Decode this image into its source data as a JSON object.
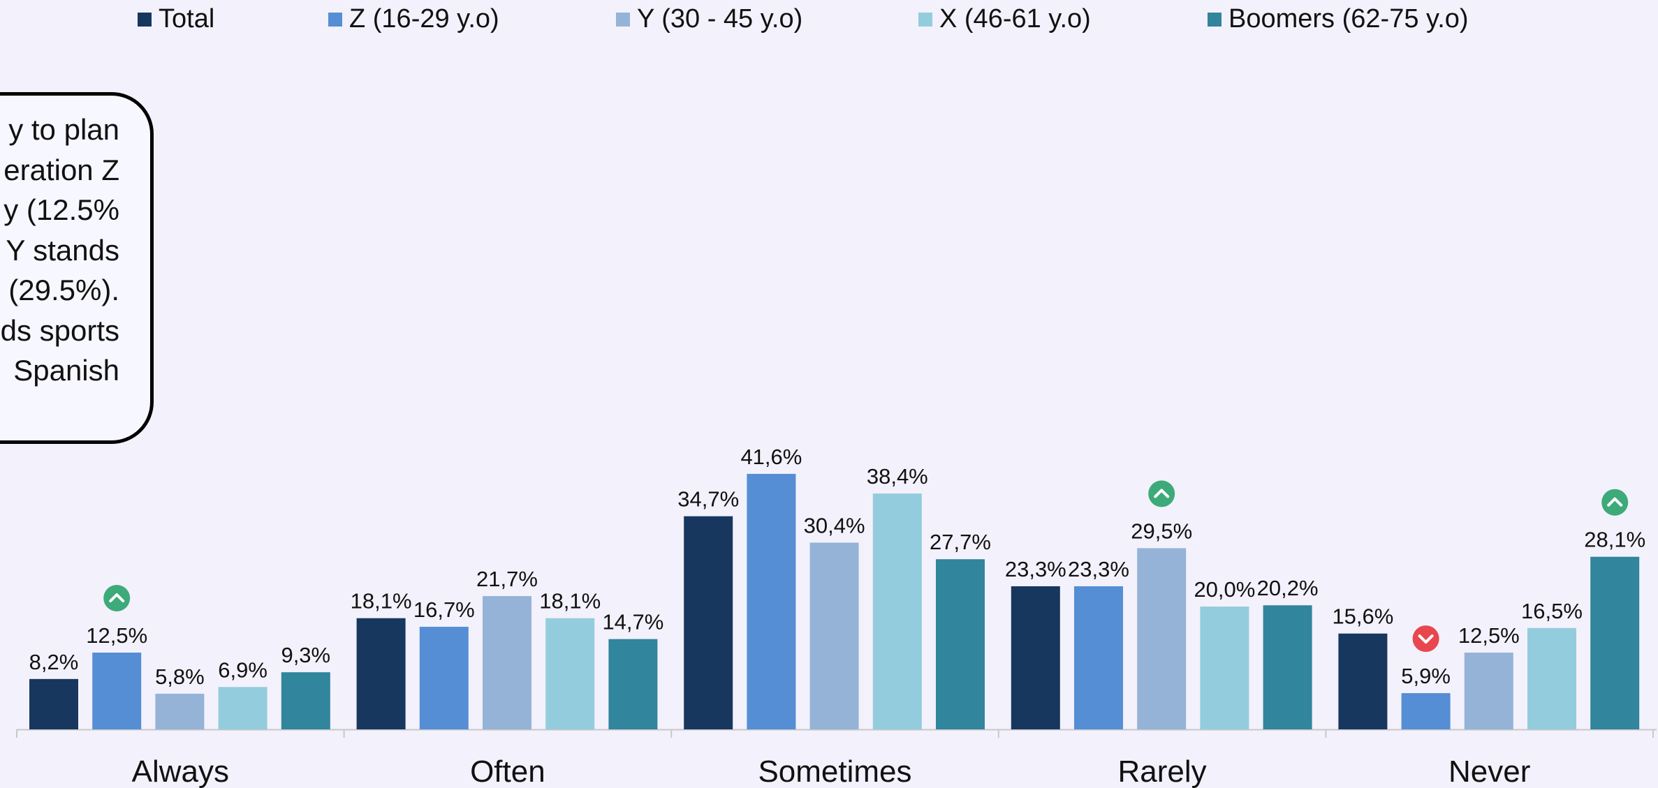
{
  "legend": [
    {
      "label": "Total",
      "color": "#17375e"
    },
    {
      "label": "Z (16-29 y.o)",
      "color": "#558ed5"
    },
    {
      "label": "Y (30 - 45 y.o)",
      "color": "#95b3d7"
    },
    {
      "label": "X (46-61 y.o)",
      "color": "#93cddd"
    },
    {
      "label": "Boomers (62-75 y.o)",
      "color": "#31859c"
    }
  ],
  "note": {
    "lines": [
      "y to plan",
      "eration Z",
      "y (12.5%",
      "Y stands",
      "(29.5%).",
      "ds sports",
      "Spanish"
    ]
  },
  "chart_data": {
    "type": "bar",
    "categories": [
      "Always",
      "Often",
      "Sometimes",
      "Rarely",
      "Never"
    ],
    "series": [
      {
        "name": "Total",
        "values": [
          8.2,
          18.1,
          34.7,
          23.3,
          15.6
        ],
        "labels": [
          "8,2%",
          "18,1%",
          "34,7%",
          "23,3%",
          "15,6%"
        ]
      },
      {
        "name": "Z (16-29 y.o)",
        "values": [
          12.5,
          16.7,
          41.6,
          23.3,
          5.9
        ],
        "labels": [
          "12,5%",
          "16,7%",
          "41,6%",
          "23,3%",
          "5,9%"
        ]
      },
      {
        "name": "Y (30 - 45 y.o)",
        "values": [
          5.8,
          21.7,
          30.4,
          29.5,
          12.5
        ],
        "labels": [
          "5,8%",
          "21,7%",
          "30,4%",
          "29,5%",
          "12,5%"
        ]
      },
      {
        "name": "X (46-61 y.o)",
        "values": [
          6.9,
          18.1,
          38.4,
          20.0,
          16.5
        ],
        "labels": [
          "6,9%",
          "18,1%",
          "38,4%",
          "20,0%",
          "16,5%"
        ]
      },
      {
        "name": "Boomers (62-75 y.o)",
        "values": [
          9.3,
          14.7,
          27.7,
          20.2,
          28.1
        ],
        "labels": [
          "9,3%",
          "14,7%",
          "27,7%",
          "20,2%",
          "28,1%"
        ]
      }
    ],
    "markers": [
      {
        "category": "Always",
        "series": "Z (16-29 y.o)",
        "direction": "up",
        "color": "#3daa7a"
      },
      {
        "category": "Rarely",
        "series": "Y (30 - 45 y.o)",
        "direction": "up",
        "color": "#3daa7a"
      },
      {
        "category": "Never",
        "series": "Z (16-29 y.o)",
        "direction": "down",
        "color": "#e8474f"
      },
      {
        "category": "Never",
        "series": "Boomers (62-75 y.o)",
        "direction": "up",
        "color": "#3daa7a"
      }
    ],
    "ylim": [
      0,
      42
    ],
    "grid": false,
    "legend_position": "top"
  }
}
